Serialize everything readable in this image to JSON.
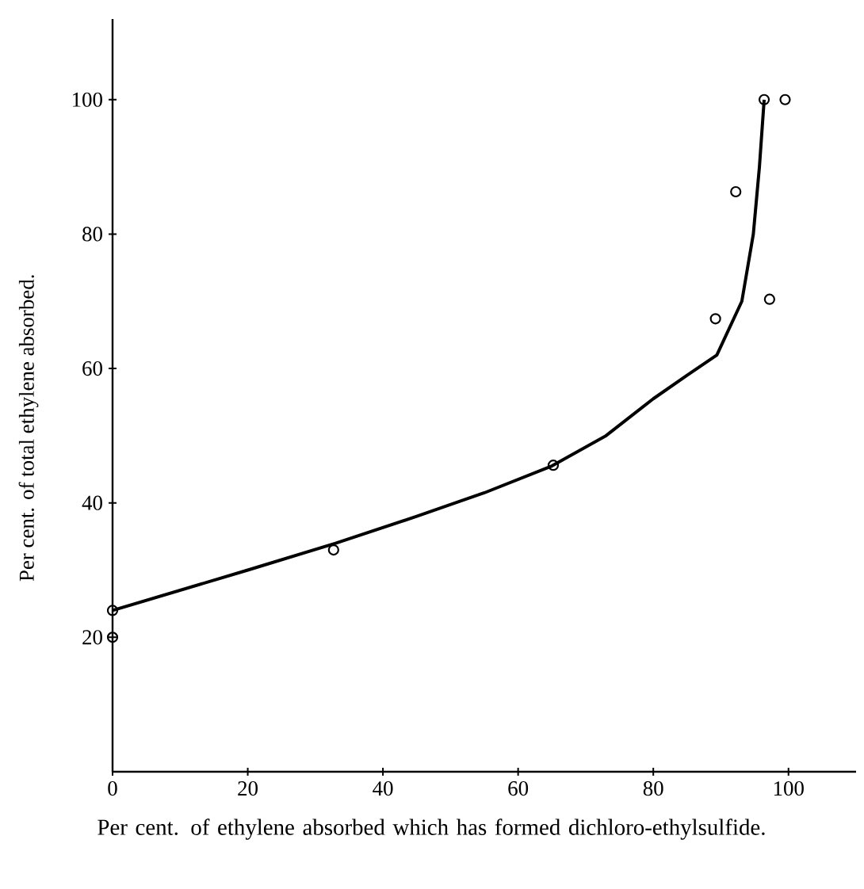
{
  "chart_data": {
    "type": "scatter",
    "xlabel": "Per cent. of ethylene absorbed which has formed dichloro-ethylsulfide.",
    "ylabel": "Per cent. of total ethylene absorbed.",
    "xlim": [
      0,
      110
    ],
    "ylim": [
      0,
      112
    ],
    "xticks": [
      0,
      20,
      40,
      60,
      80,
      100
    ],
    "yticks": [
      20,
      40,
      60,
      80,
      100
    ],
    "grid": false,
    "series": [
      {
        "marker": "circle",
        "color": "#000000",
        "x": [
          0,
          0,
          32.7,
          65.2,
          89.2,
          92.2,
          97.2,
          96.4,
          99.5
        ],
        "values": [
          24,
          20,
          33,
          45.6,
          67.4,
          86.3,
          70.3,
          100,
          100
        ]
      },
      {
        "type": "line",
        "marker": "none",
        "line_style": "solid",
        "color": "#000000",
        "x": [
          0,
          10,
          20,
          33,
          45,
          55,
          65,
          73,
          80,
          85,
          89.4,
          93.1,
          94.8,
          95.7,
          96.4
        ],
        "values": [
          24,
          27,
          30,
          34,
          38,
          41.5,
          45.5,
          50,
          55.5,
          59,
          62,
          70,
          80,
          90,
          100
        ]
      }
    ]
  }
}
